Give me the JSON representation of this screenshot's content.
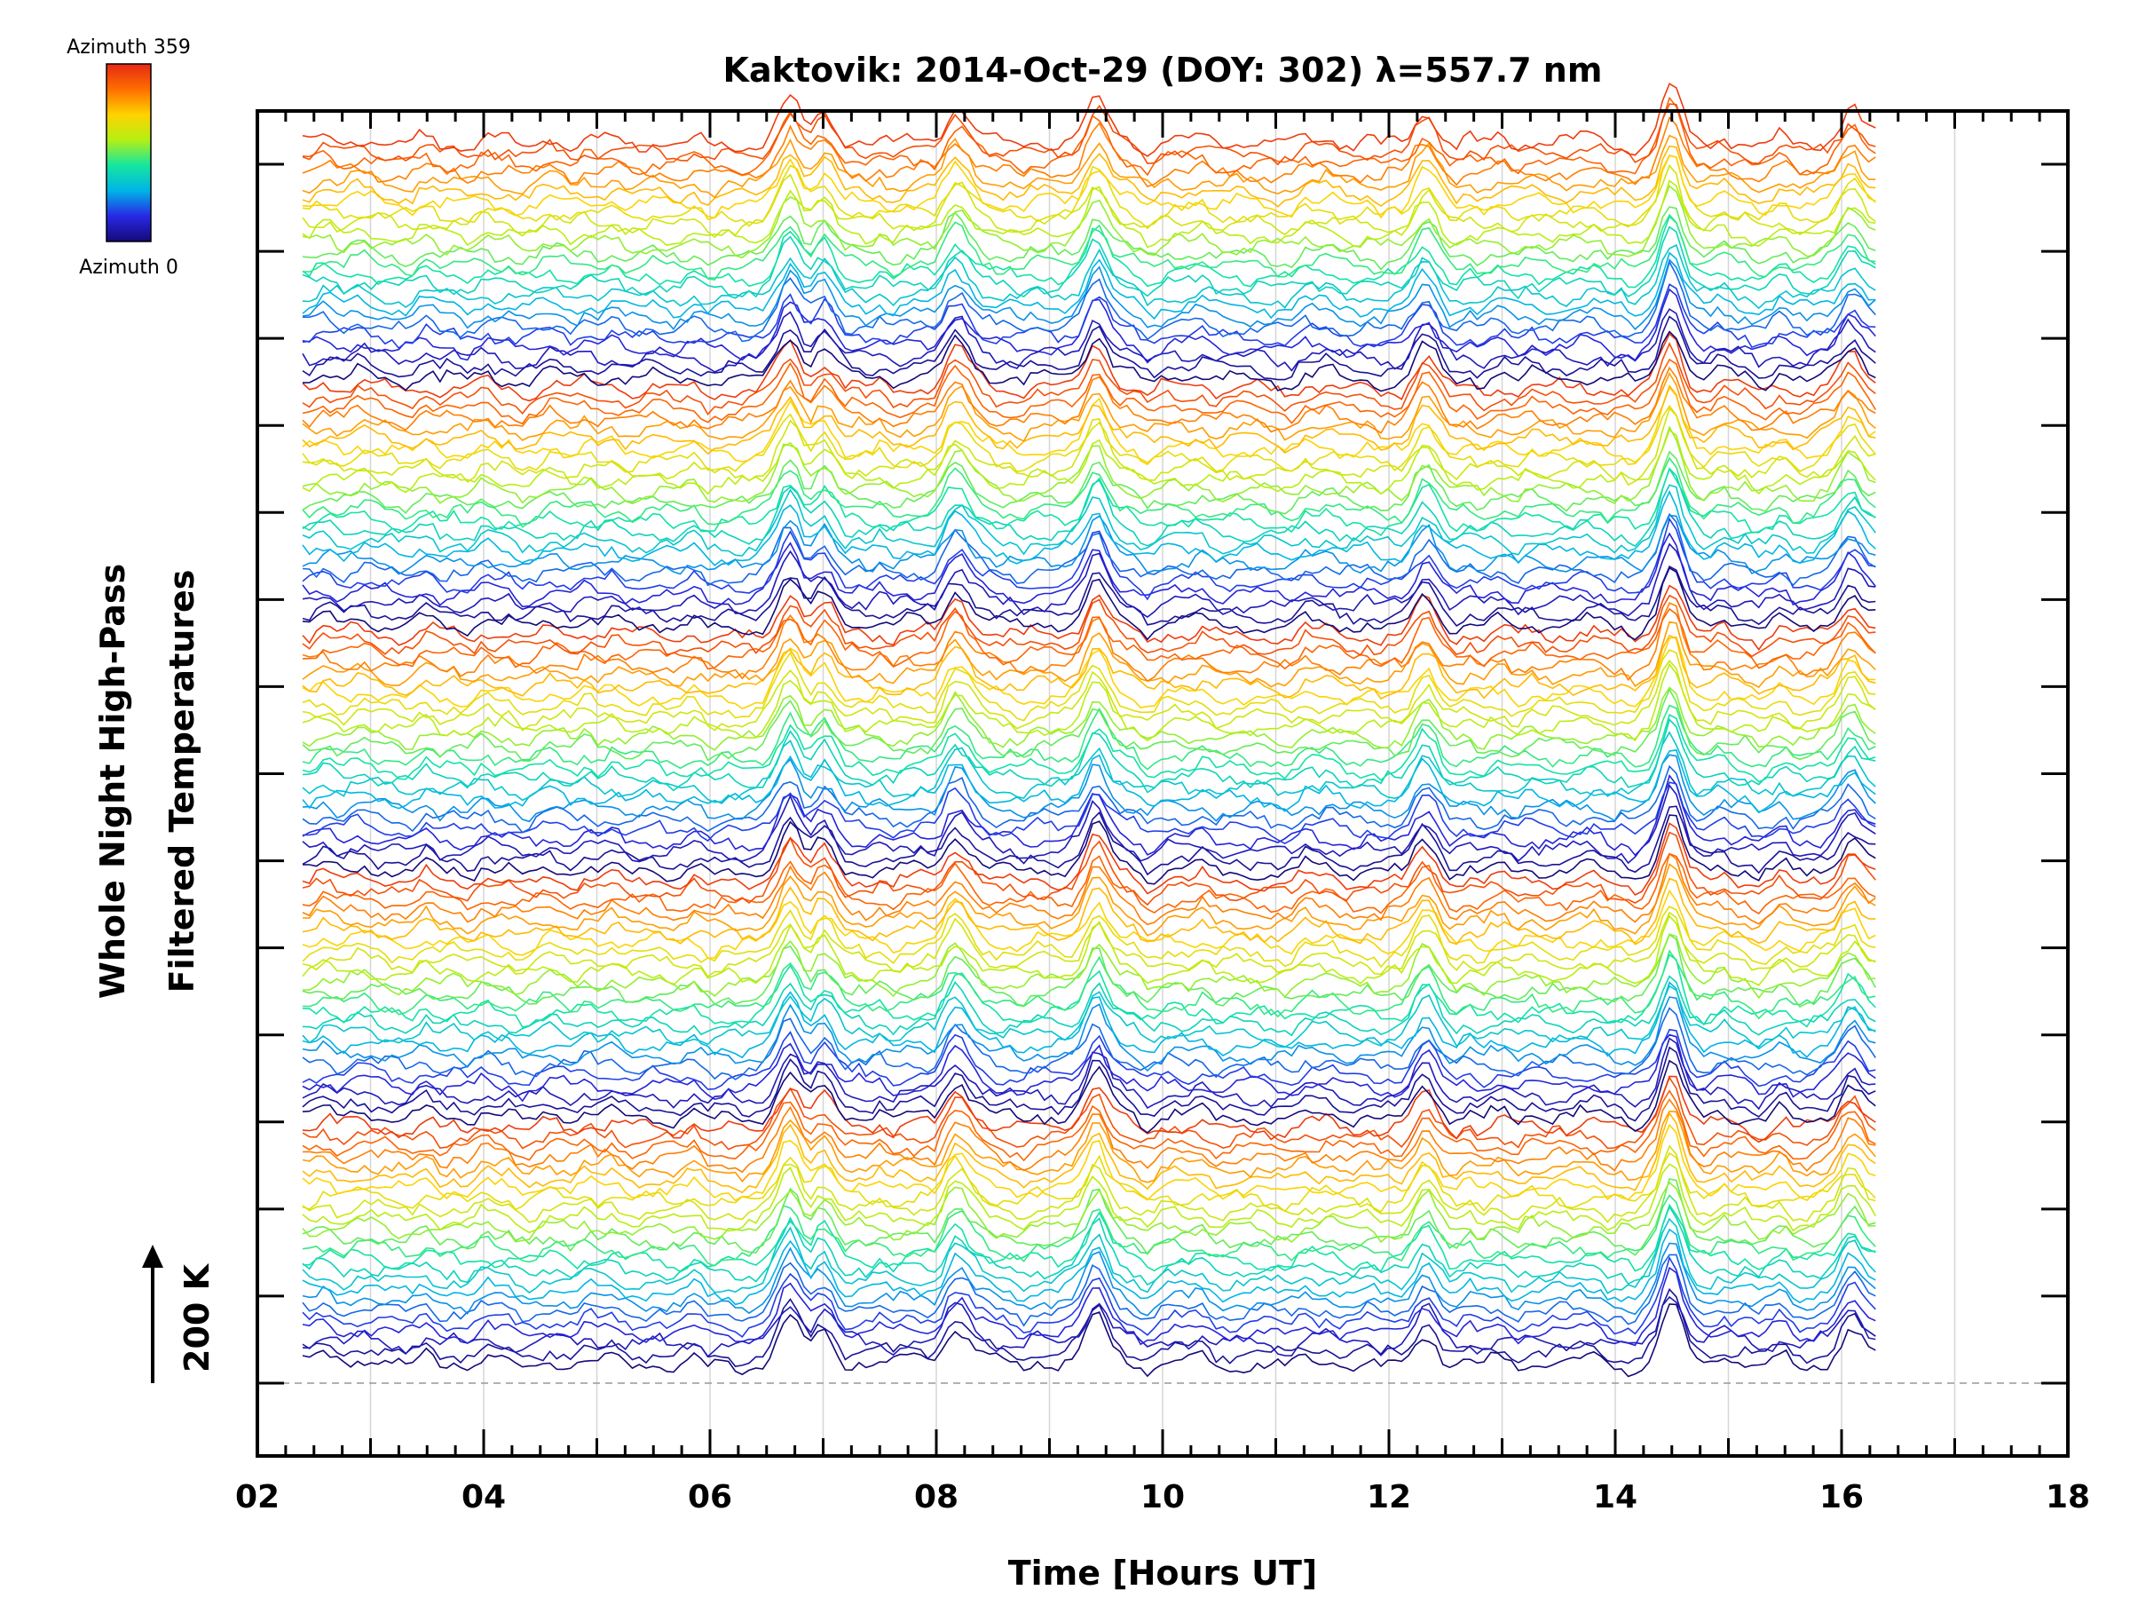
{
  "chart_data": {
    "type": "line",
    "title": "Kaktovik: 2014-Oct-29 (DOY: 302) λ=557.7 nm",
    "xlabel": "Time [Hours UT]",
    "ylabel": [
      "Whole Night High-Pass",
      "Filtered Temperatures"
    ],
    "xlim": [
      2,
      18
    ],
    "x_ticks": [
      "02",
      "04",
      "06",
      "08",
      "10",
      "12",
      "14",
      "16",
      "18"
    ],
    "x_grid": true,
    "data_range": [
      2.4,
      16.3
    ],
    "series_count": 120,
    "scale_bar": {
      "label": "200 K",
      "value": 200,
      "unit": "K"
    },
    "colorbar": {
      "label_max": "Azimuth 359",
      "label_min": "Azimuth 0",
      "min": 0,
      "max": 359,
      "colors": [
        "#140a78",
        "#2828e6",
        "#00b4e6",
        "#14e6a0",
        "#b4f014",
        "#ffd200",
        "#ff6e00",
        "#e62814"
      ]
    },
    "y_ticks_count": 15,
    "events": [
      {
        "time": 6.7,
        "amplitude": 1.2
      },
      {
        "time": 7.0,
        "amplitude": 0.9
      },
      {
        "time": 8.2,
        "amplitude": 1.1
      },
      {
        "time": 9.4,
        "amplitude": 1.3
      },
      {
        "time": 12.3,
        "amplitude": 1.0
      },
      {
        "time": 14.5,
        "amplitude": 1.6
      },
      {
        "time": 16.1,
        "amplitude": 0.8
      }
    ]
  }
}
